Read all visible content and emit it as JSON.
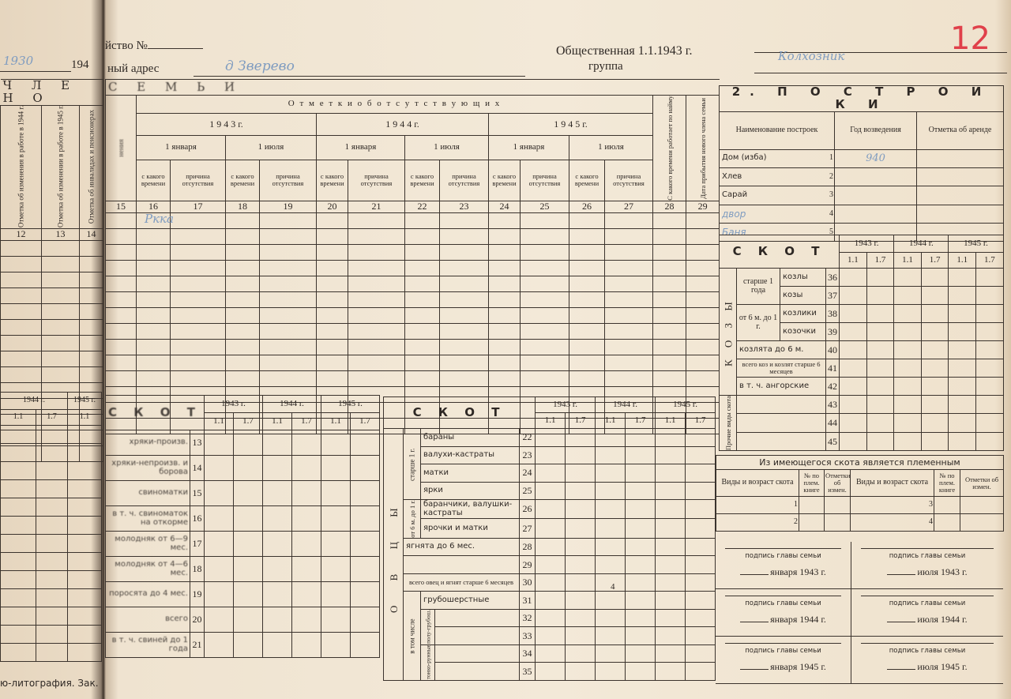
{
  "header": {
    "household_no_label": "йство №",
    "handwritten_year": "1930",
    "year_prefix": "194",
    "address_label": "ный адрес",
    "address_value": "д Зверево",
    "group_label": "Общественная 1.1.1943 г.",
    "group_label2": "группа",
    "group_value": "Колхозник",
    "page_number": "12",
    "page_number_color": "#e0404a",
    "handwriting_color": "#7f9cc0"
  },
  "left_page": {
    "title": "Ч Л Е Н О",
    "columns": [
      {
        "label": "Отметка об изменения в работе в 1944 г.",
        "num": "12"
      },
      {
        "label": "Отметка об изменении в работе в 1945 г.",
        "num": "13"
      },
      {
        "label": "Отметка об инвалидах и пенсионерах",
        "num": "14"
      }
    ],
    "bottom_years": [
      "1944 г.",
      "1945 г."
    ],
    "bottom_dates": [
      "1.1",
      "1.7",
      "1.1"
    ],
    "footer": "ю-литография. Зак."
  },
  "family": {
    "title": "С Е М Ь И",
    "col15_label": "нения",
    "absent_title": "О т м е т к и   о б   о т с у т с т в у ю щ и х",
    "years": [
      "1 9 4 3  г.",
      "1 9 4 4  г.",
      "1 9 4 5  г."
    ],
    "dates": [
      "1 января",
      "1 июля"
    ],
    "sub": [
      "с какого времени",
      "причина отсутствия"
    ],
    "col28": "С какого времени работает по найму",
    "col29": "Дата прибытия нового члена семьи",
    "nums": [
      "15",
      "16",
      "17",
      "18",
      "19",
      "20",
      "21",
      "22",
      "23",
      "24",
      "25",
      "26",
      "27",
      "28",
      "29"
    ],
    "handwritten_entry": "Ркка"
  },
  "buildings": {
    "title": "2.  П О С Т Р О Й К И",
    "headers": [
      "Наименование построек",
      "Год возведения",
      "Отметка об аренде"
    ],
    "rows": [
      {
        "name": "Дом (изба)",
        "num": "1",
        "year": "940"
      },
      {
        "name": "Хлев",
        "num": "2",
        "year": ""
      },
      {
        "name": "Сарай",
        "num": "3",
        "year": ""
      },
      {
        "name": "двор",
        "num": "4",
        "year": ""
      },
      {
        "name": "Баня",
        "num": "5",
        "year": ""
      }
    ]
  },
  "livestock": {
    "title": "С К О Т",
    "years": [
      "1943 г.",
      "1944 г.",
      "1945 г."
    ],
    "dates": [
      "1.1",
      "1.7"
    ]
  },
  "goats": {
    "group": "К О З Ы",
    "older": "старше 1 года",
    "mid": "от 6 м. до 1 г.",
    "other": "Прочие виды скота",
    "rows": [
      {
        "label": "козлы",
        "num": "36"
      },
      {
        "label": "козы",
        "num": "37"
      },
      {
        "label": "козлики",
        "num": "38"
      },
      {
        "label": "козочки",
        "num": "39"
      },
      {
        "label": "козлята до 6 м.",
        "num": "40"
      },
      {
        "label": "всего коз и козлят старше 6 месяцев",
        "num": "41"
      },
      {
        "label": "в т. ч. ангорские",
        "num": "42"
      },
      {
        "label": "",
        "num": "43"
      },
      {
        "label": "",
        "num": "44"
      },
      {
        "label": "",
        "num": "45"
      }
    ]
  },
  "pigs": {
    "rows": [
      {
        "label": "хряки-произв.",
        "num": "13"
      },
      {
        "label": "хряки-непроизв. и борова",
        "num": "14"
      },
      {
        "label": "свиноматки",
        "num": "15"
      },
      {
        "label": "в т. ч. свиноматок на откорме",
        "num": "16"
      },
      {
        "label": "молодняк от 6—9 мес.",
        "num": "17"
      },
      {
        "label": "молодняк от 4—6 мес.",
        "num": "18"
      },
      {
        "label": "поросята до 4 мес.",
        "num": "19"
      },
      {
        "label": "всего",
        "num": "20"
      },
      {
        "label": "в т. ч. свиней до 1 года",
        "num": "21"
      }
    ]
  },
  "sheep": {
    "group": "О В Ц Ы",
    "older": "старше 1 г.",
    "mid": "от 6 м. до 1 г.",
    "incl": "в том числе",
    "semi": "полу-грубош.",
    "fine": "тонко-рунные",
    "rows": [
      {
        "label": "бараны",
        "num": "22"
      },
      {
        "label": "валухи-кастраты",
        "num": "23"
      },
      {
        "label": "матки",
        "num": "24"
      },
      {
        "label": "ярки",
        "num": "25"
      },
      {
        "label": "баранчики, валушки-кастраты",
        "num": "26"
      },
      {
        "label": "ярочки и матки",
        "num": "27"
      },
      {
        "label": "ягнята до 6 мес.",
        "num": "28"
      },
      {
        "label": "",
        "num": "29"
      },
      {
        "label": "всего овец и ягнят старше 6 месяцев",
        "num": "30"
      },
      {
        "label": "грубошерстные",
        "num": "31"
      },
      {
        "label": "",
        "num": "32"
      },
      {
        "label": "",
        "num": "33"
      },
      {
        "label": "",
        "num": "34"
      },
      {
        "label": "",
        "num": "35"
      }
    ],
    "mark": "4"
  },
  "breeding": {
    "title": "Из имеющегося скота является племенным",
    "headers": [
      "Виды и возраст скота",
      "№ по плем. книге",
      "Отметки об измен."
    ],
    "nums": [
      "1",
      "2",
      "3",
      "4"
    ]
  },
  "signatures": [
    {
      "label": "подпись главы семьи",
      "date": "января 1943 г."
    },
    {
      "label": "подпись главы семьи",
      "date": "июля 1943 г."
    },
    {
      "label": "подпись главы семьи",
      "date": "января 1944 г."
    },
    {
      "label": "подпись главы семьи",
      "date": "июля 1944 г."
    },
    {
      "label": "подпись главы семьи",
      "date": "января 1945 г."
    },
    {
      "label": "подпись главы семьи",
      "date": "июля 1945 г."
    }
  ]
}
